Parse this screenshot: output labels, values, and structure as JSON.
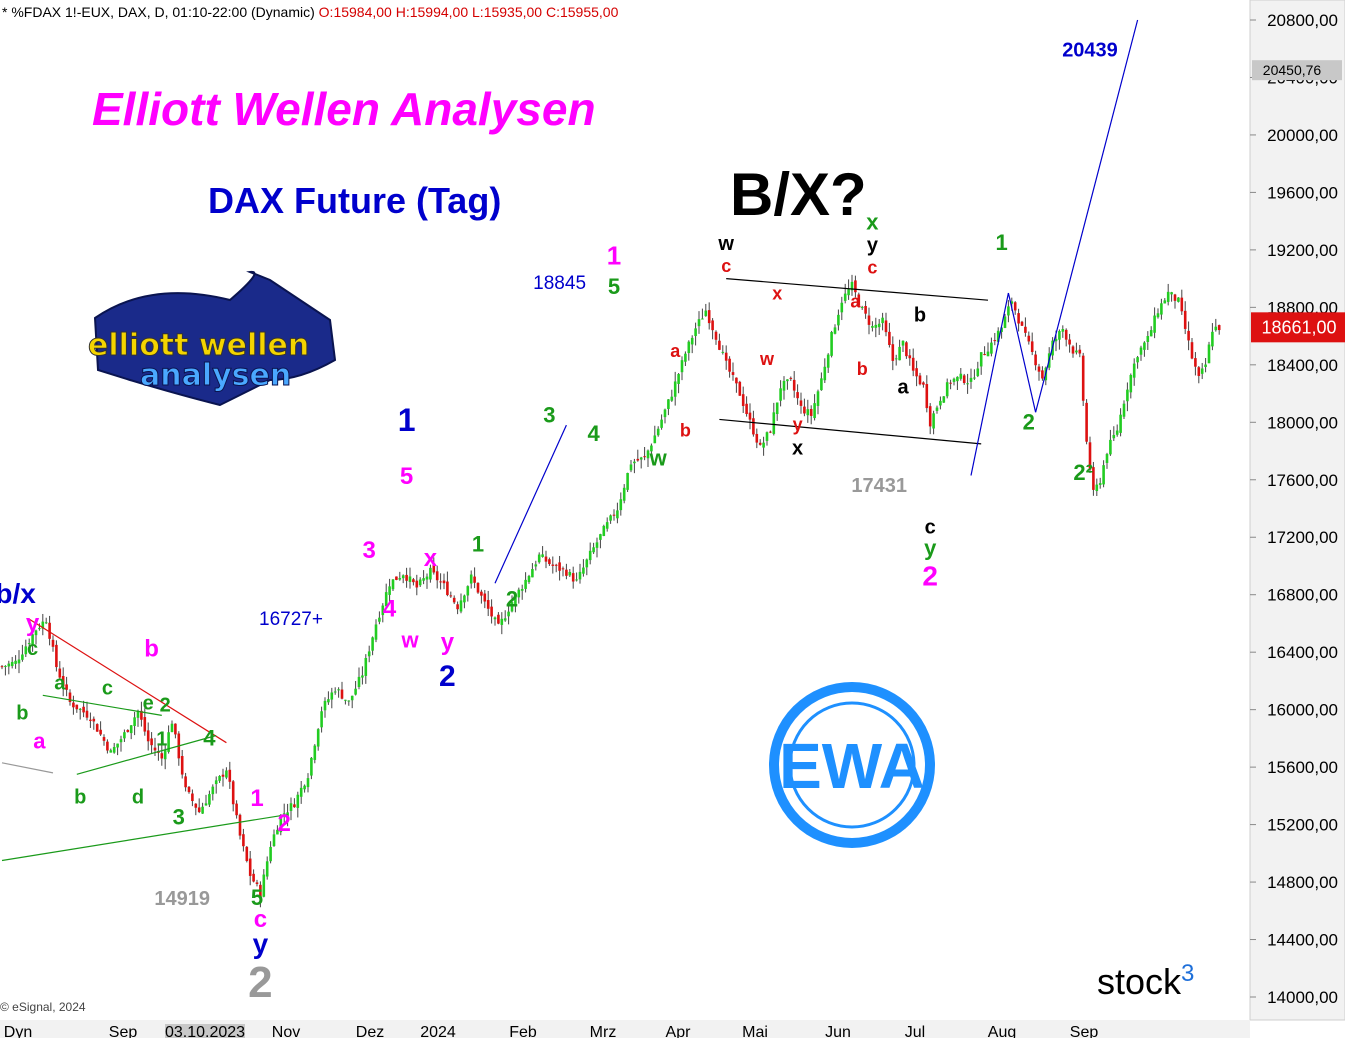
{
  "header": {
    "symbol_info": "* %FDAX 1!-EUX, DAX, D, 01:10-22:00 (Dynamic)",
    "ohlc": "O:15984,00 H:15994,00 L:15935,00 C:15955,00"
  },
  "title": "Elliott Wellen Analysen",
  "subtitle": "DAX Future (Tag)",
  "main_label": "B/X?",
  "copyright": "© eSignal, 2024",
  "watermark": {
    "brand": "stock",
    "sup": "3",
    "badge": "EWA",
    "logo_line1": "elliott wellen",
    "logo_line2": "analysen"
  },
  "colors": {
    "up": "#22cc22",
    "down": "#dd1111",
    "magenta": "#ff00ff",
    "blue": "#0000cc",
    "green": "#1a9a1a",
    "red": "#dd1111",
    "black": "#000000",
    "gray": "#999999",
    "ewa_blue": "#1e90ff"
  },
  "chart_data": {
    "type": "candlestick",
    "y_axis": {
      "min": 14000,
      "max": 20800,
      "step": 400,
      "tick_labels": [
        "20800,00",
        "20400,00",
        "20000,00",
        "19600,00",
        "19200,00",
        "18800,00",
        "18400,00",
        "18000,00",
        "17600,00",
        "17200,00",
        "16800,00",
        "16400,00",
        "16000,00",
        "15600,00",
        "15200,00",
        "14800,00",
        "14400,00",
        "14000,00"
      ],
      "current_price_label": "18661,00",
      "current_price": 18661,
      "marker_label": "20450,76",
      "marker_price": 20450.76
    },
    "x_axis": {
      "labels": [
        "Dyn",
        "Sep",
        "03.10.2023",
        "Nov",
        "Dez",
        "2024",
        "Feb",
        "Mrz",
        "Apr",
        "Mai",
        "Jun",
        "Jul",
        "Aug",
        "Sep"
      ]
    },
    "price_path": [
      [
        0,
        16300
      ],
      [
        4,
        16330
      ],
      [
        10,
        16560
      ],
      [
        13,
        16630
      ],
      [
        16,
        16300
      ],
      [
        20,
        16050
      ],
      [
        26,
        15950
      ],
      [
        32,
        15700
      ],
      [
        36,
        15830
      ],
      [
        40,
        15990
      ],
      [
        43,
        15780
      ],
      [
        47,
        15660
      ],
      [
        50,
        15920
      ],
      [
        54,
        15440
      ],
      [
        58,
        15290
      ],
      [
        62,
        15450
      ],
      [
        66,
        15590
      ],
      [
        70,
        15120
      ],
      [
        73,
        14850
      ],
      [
        76,
        14720
      ],
      [
        79,
        15060
      ],
      [
        82,
        15260
      ],
      [
        86,
        15350
      ],
      [
        90,
        15550
      ],
      [
        94,
        16000
      ],
      [
        98,
        16150
      ],
      [
        102,
        16050
      ],
      [
        106,
        16250
      ],
      [
        110,
        16600
      ],
      [
        114,
        16880
      ],
      [
        118,
        16950
      ],
      [
        122,
        16850
      ],
      [
        126,
        16960
      ],
      [
        130,
        16860
      ],
      [
        134,
        16720
      ],
      [
        138,
        16920
      ],
      [
        142,
        16740
      ],
      [
        146,
        16570
      ],
      [
        150,
        16750
      ],
      [
        154,
        16900
      ],
      [
        158,
        17070
      ],
      [
        162,
        17000
      ],
      [
        166,
        16960
      ],
      [
        169,
        16890
      ],
      [
        173,
        17080
      ],
      [
        177,
        17250
      ],
      [
        181,
        17400
      ],
      [
        185,
        17720
      ],
      [
        189,
        17750
      ],
      [
        193,
        17960
      ],
      [
        197,
        18200
      ],
      [
        201,
        18480
      ],
      [
        204,
        18655
      ],
      [
        207,
        18780
      ],
      [
        210,
        18600
      ],
      [
        213,
        18400
      ],
      [
        217,
        18200
      ],
      [
        220,
        18000
      ],
      [
        223,
        17820
      ],
      [
        226,
        17950
      ],
      [
        229,
        18250
      ],
      [
        232,
        18280
      ],
      [
        235,
        18100
      ],
      [
        238,
        18050
      ],
      [
        241,
        18300
      ],
      [
        244,
        18600
      ],
      [
        247,
        18850
      ],
      [
        250,
        18950
      ],
      [
        253,
        18780
      ],
      [
        256,
        18660
      ],
      [
        259,
        18700
      ],
      [
        262,
        18430
      ],
      [
        265,
        18550
      ],
      [
        268,
        18350
      ],
      [
        271,
        18250
      ],
      [
        273,
        18000
      ],
      [
        276,
        18170
      ],
      [
        279,
        18290
      ],
      [
        282,
        18310
      ],
      [
        285,
        18280
      ],
      [
        288,
        18460
      ],
      [
        291,
        18550
      ],
      [
        294,
        18660
      ],
      [
        297,
        18850
      ],
      [
        300,
        18650
      ],
      [
        303,
        18480
      ],
      [
        306,
        18310
      ],
      [
        309,
        18550
      ],
      [
        312,
        18650
      ],
      [
        315,
        18500
      ],
      [
        317,
        18450
      ],
      [
        319,
        17860
      ],
      [
        321,
        17500
      ],
      [
        323,
        17600
      ],
      [
        325,
        17800
      ],
      [
        328,
        17950
      ],
      [
        331,
        18250
      ],
      [
        334,
        18480
      ],
      [
        337,
        18580
      ],
      [
        340,
        18780
      ],
      [
        343,
        18900
      ],
      [
        346,
        18840
      ],
      [
        348,
        18650
      ],
      [
        350,
        18450
      ],
      [
        352,
        18300
      ],
      [
        354,
        18400
      ],
      [
        356,
        18650
      ],
      [
        358,
        18661
      ]
    ],
    "price_anchors": [
      {
        "label": "b/x",
        "i": 10,
        "price": 16630
      }
    ],
    "waves": [
      {
        "text": "b/x",
        "i": 4,
        "price": 16700,
        "color": "blue",
        "size": 28,
        "dy": -6
      },
      {
        "text": "y",
        "i": 9,
        "price": 16700,
        "color": "magenta",
        "size": 24,
        "dy": 22
      },
      {
        "text": "c",
        "i": 9,
        "price": 16700,
        "color": "green",
        "size": 20,
        "dy": 46
      },
      {
        "text": "a",
        "i": 17,
        "price": 16000,
        "color": "green",
        "size": 20,
        "dy": -20
      },
      {
        "text": "b",
        "i": 6,
        "price": 16000,
        "color": "green",
        "size": 20,
        "dy": 10
      },
      {
        "text": "a",
        "i": 11,
        "price": 15800,
        "color": "magenta",
        "size": 22,
        "dy": 10
      },
      {
        "text": "c",
        "i": 31,
        "price": 16000,
        "color": "green",
        "size": 20,
        "dy": -15
      },
      {
        "text": "b",
        "i": 23,
        "price": 15500,
        "color": "green",
        "size": 20,
        "dy": 22
      },
      {
        "text": "d",
        "i": 40,
        "price": 15500,
        "color": "green",
        "size": 20,
        "dy": 22
      },
      {
        "text": "b",
        "i": 44,
        "price": 16300,
        "color": "magenta",
        "size": 24,
        "dy": -10
      },
      {
        "text": "e",
        "i": 43,
        "price": 16000,
        "color": "green",
        "size": 20,
        "dy": 0
      },
      {
        "text": "2",
        "i": 48,
        "price": 16000,
        "color": "green",
        "size": 20,
        "dy": 2
      },
      {
        "text": "1",
        "i": 47,
        "price": 15750,
        "color": "green",
        "size": 20,
        "dy": 0
      },
      {
        "text": "4",
        "i": 61,
        "price": 15750,
        "color": "green",
        "size": 22,
        "dy": 0
      },
      {
        "text": "3",
        "i": 52,
        "price": 15200,
        "color": "green",
        "size": 22,
        "dy": 0
      },
      {
        "text": "14919",
        "i": 53,
        "price": 14919,
        "color": "gray",
        "size": 20,
        "dy": 40
      },
      {
        "text": "1",
        "i": 75,
        "price": 15300,
        "color": "magenta",
        "size": 24,
        "dy": -4
      },
      {
        "text": "2",
        "i": 83,
        "price": 15100,
        "color": "magenta",
        "size": 24,
        "dy": -8
      },
      {
        "text": "5",
        "i": 75,
        "price": 14600,
        "color": "green",
        "size": 22,
        "dy": -6
      },
      {
        "text": "c",
        "i": 76,
        "price": 14600,
        "color": "magenta",
        "size": 24,
        "dy": 16
      },
      {
        "text": "y",
        "i": 76,
        "price": 14600,
        "color": "blue",
        "size": 28,
        "dy": 42
      },
      {
        "text": "2",
        "i": 76,
        "price": 14600,
        "color": "gray",
        "size": 44,
        "dy": 86
      },
      {
        "text": "16727+",
        "i": 85,
        "price": 16727,
        "color": "blue",
        "size": 19,
        "dy": 20
      },
      {
        "text": "3",
        "i": 108,
        "price": 17000,
        "color": "magenta",
        "size": 24,
        "dy": -8
      },
      {
        "text": "4",
        "i": 114,
        "price": 16800,
        "color": "magenta",
        "size": 24,
        "dy": 22
      },
      {
        "text": "w",
        "i": 120,
        "price": 16600,
        "color": "magenta",
        "size": 22,
        "dy": 24
      },
      {
        "text": "x",
        "i": 126,
        "price": 17000,
        "color": "magenta",
        "size": 24,
        "dy": 0
      },
      {
        "text": "y",
        "i": 131,
        "price": 16500,
        "color": "magenta",
        "size": 24,
        "dy": 12
      },
      {
        "text": "2",
        "i": 131,
        "price": 16500,
        "color": "blue",
        "size": 30,
        "dy": 48
      },
      {
        "text": "1",
        "i": 119,
        "price": 17800,
        "color": "blue",
        "size": 32,
        "dy": -20
      },
      {
        "text": "5",
        "i": 119,
        "price": 17500,
        "color": "magenta",
        "size": 24,
        "dy": -10
      },
      {
        "text": "1",
        "i": 140,
        "price": 17100,
        "color": "green",
        "size": 22,
        "dy": 0
      },
      {
        "text": "2",
        "i": 150,
        "price": 16800,
        "color": "green",
        "size": 22,
        "dy": 12
      },
      {
        "text": "3",
        "i": 161,
        "price": 18000,
        "color": "green",
        "size": 22,
        "dy": 0
      },
      {
        "text": "4",
        "i": 174,
        "price": 17800,
        "color": "green",
        "size": 22,
        "dy": -10
      },
      {
        "text": "18845",
        "i": 164,
        "price": 18845,
        "color": "blue",
        "size": 19,
        "dy": -12
      },
      {
        "text": "1",
        "i": 180,
        "price": 19100,
        "color": "magenta",
        "size": 26,
        "dy": 0
      },
      {
        "text": "5",
        "i": 180,
        "price": 18850,
        "color": "green",
        "size": 22,
        "dy": -6
      },
      {
        "text": "a",
        "i": 198,
        "price": 18400,
        "color": "red",
        "size": 18,
        "dy": -8
      },
      {
        "text": "b",
        "i": 201,
        "price": 18000,
        "color": "red",
        "size": 18,
        "dy": 14
      },
      {
        "text": "w",
        "i": 193,
        "price": 17700,
        "color": "green",
        "size": 22,
        "dy": 0
      },
      {
        "text": "w",
        "i": 213,
        "price": 19200,
        "color": "black",
        "size": 20,
        "dy": 0
      },
      {
        "text": "c",
        "i": 213,
        "price": 19200,
        "color": "red",
        "size": 18,
        "dy": 22
      },
      {
        "text": "x",
        "i": 228,
        "price": 18800,
        "color": "red",
        "size": 18,
        "dy": -8
      },
      {
        "text": "w",
        "i": 225,
        "price": 18400,
        "color": "red",
        "size": 18,
        "dy": 0
      },
      {
        "text": "y",
        "i": 234,
        "price": 18000,
        "color": "red",
        "size": 18,
        "dy": 8
      },
      {
        "text": "x",
        "i": 234,
        "price": 18000,
        "color": "black",
        "size": 20,
        "dy": 32
      },
      {
        "text": "x",
        "i": 256,
        "price": 19300,
        "color": "green",
        "size": 22,
        "dy": -6
      },
      {
        "text": "y",
        "i": 256,
        "price": 19300,
        "color": "black",
        "size": 20,
        "dy": 16
      },
      {
        "text": "c",
        "i": 256,
        "price": 19300,
        "color": "red",
        "size": 18,
        "dy": 38
      },
      {
        "text": "a",
        "i": 251,
        "price": 18800,
        "color": "red",
        "size": 18,
        "dy": 0
      },
      {
        "text": "b",
        "i": 253,
        "price": 18400,
        "color": "red",
        "size": 18,
        "dy": 10
      },
      {
        "text": "b",
        "i": 270,
        "price": 18700,
        "color": "black",
        "size": 20,
        "dy": 0
      },
      {
        "text": "a",
        "i": 265,
        "price": 18200,
        "color": "black",
        "size": 20,
        "dy": 0
      },
      {
        "text": "17431",
        "i": 258,
        "price": 17431,
        "color": "gray",
        "size": 20,
        "dy": -12
      },
      {
        "text": "c",
        "i": 273,
        "price": 17100,
        "color": "black",
        "size": 20,
        "dy": -18
      },
      {
        "text": "y",
        "i": 273,
        "price": 17100,
        "color": "green",
        "size": 22,
        "dy": 4
      },
      {
        "text": "2",
        "i": 273,
        "price": 17100,
        "color": "magenta",
        "size": 28,
        "dy": 34
      },
      {
        "text": "1",
        "i": 294,
        "price": 19200,
        "color": "green",
        "size": 22,
        "dy": 0
      },
      {
        "text": "2",
        "i": 302,
        "price": 17950,
        "color": "green",
        "size": 22,
        "dy": 0
      },
      {
        "text": "2²",
        "i": 318,
        "price": 17600,
        "color": "green",
        "size": 22,
        "dy": 0
      },
      {
        "text": "20439",
        "i": 320,
        "price": 20600,
        "color": "blue",
        "size": 20,
        "dy": 8
      }
    ],
    "lines": [
      {
        "color": "#dd1111",
        "from": [
          8,
          16630
        ],
        "to": [
          66,
          15770
        ]
      },
      {
        "color": "#1a9a1a",
        "from": [
          12,
          16100
        ],
        "to": [
          47,
          15960
        ]
      },
      {
        "color": "#1a9a1a",
        "from": [
          22,
          15550
        ],
        "to": [
          63,
          15820
        ]
      },
      {
        "color": "#1a9a1a",
        "from": [
          0,
          14950
        ],
        "to": [
          84,
          15270
        ]
      },
      {
        "color": "#999999",
        "from": [
          0,
          15630
        ],
        "to": [
          15,
          15560
        ]
      },
      {
        "color": "#0000cc",
        "from": [
          145,
          16880
        ],
        "to": [
          166,
          17980
        ]
      },
      {
        "color": "#000000",
        "from": [
          213,
          19000
        ],
        "to": [
          290,
          18850
        ]
      },
      {
        "color": "#000000",
        "from": [
          211,
          18020
        ],
        "to": [
          288,
          17850
        ]
      },
      {
        "color": "#0000cc",
        "from": [
          285,
          17630
        ],
        "to": [
          296,
          18900
        ]
      },
      {
        "color": "#0000cc",
        "from": [
          296,
          18900
        ],
        "to": [
          304,
          18070
        ]
      },
      {
        "color": "#0000cc",
        "from": [
          304,
          18070
        ],
        "to": [
          334,
          20800
        ]
      }
    ]
  }
}
